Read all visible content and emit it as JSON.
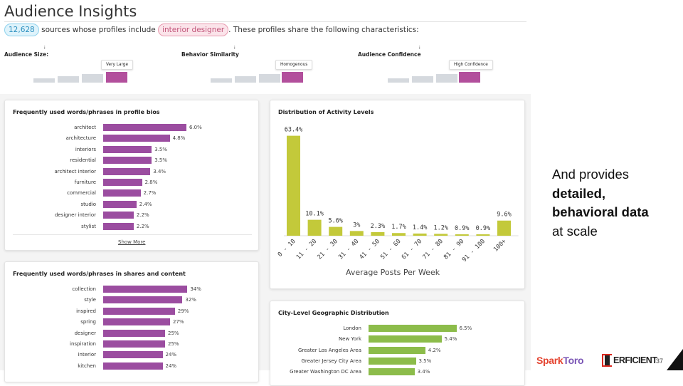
{
  "header": {
    "title": "Audience Insights",
    "count_badge": "12,628",
    "summary_pre": "sources whose profiles include",
    "keyword_badge": "interior designer",
    "summary_post": ". These profiles share the following characteristics:"
  },
  "meters": [
    {
      "label": "Audience Size:",
      "value": "Very Large",
      "level": 4,
      "info": "i"
    },
    {
      "label": "Behavior Similarity",
      "value": "Homogenous",
      "level": 4,
      "info": "i"
    },
    {
      "label": "Audience Confidence",
      "value": "High Confidence",
      "level": 4,
      "info": "i"
    }
  ],
  "bios_card": {
    "title": "Frequently used words/phrases in profile bios",
    "show_more": "Show More",
    "items": [
      {
        "label": "architect",
        "value": 6.0,
        "text": "6.0%"
      },
      {
        "label": "architecture",
        "value": 4.8,
        "text": "4.8%"
      },
      {
        "label": "interiors",
        "value": 3.5,
        "text": "3.5%"
      },
      {
        "label": "residential",
        "value": 3.5,
        "text": "3.5%"
      },
      {
        "label": "architect interior",
        "value": 3.4,
        "text": "3.4%"
      },
      {
        "label": "furniture",
        "value": 2.8,
        "text": "2.8%"
      },
      {
        "label": "commercial",
        "value": 2.7,
        "text": "2.7%"
      },
      {
        "label": "studio",
        "value": 2.4,
        "text": "2.4%"
      },
      {
        "label": "designer interior",
        "value": 2.2,
        "text": "2.2%"
      },
      {
        "label": "stylist",
        "value": 2.2,
        "text": "2.2%"
      }
    ]
  },
  "shares_card": {
    "title": "Frequently used words/phrases in shares and content",
    "items": [
      {
        "label": "collection",
        "value": 34,
        "text": "34%"
      },
      {
        "label": "style",
        "value": 32,
        "text": "32%"
      },
      {
        "label": "inspired",
        "value": 29,
        "text": "29%"
      },
      {
        "label": "spring",
        "value": 27,
        "text": "27%"
      },
      {
        "label": "designer",
        "value": 25,
        "text": "25%"
      },
      {
        "label": "inspiration",
        "value": 25,
        "text": "25%"
      },
      {
        "label": "interior",
        "value": 24,
        "text": "24%"
      },
      {
        "label": "kitchen",
        "value": 24,
        "text": "24%"
      }
    ]
  },
  "activity_card": {
    "title": "Distribution of Activity Levels"
  },
  "chart_data": {
    "type": "bar",
    "title": "Distribution of Activity Levels",
    "xlabel": "Average Posts Per Week",
    "ylabel": "",
    "categories": [
      "0 - 10",
      "11 - 20",
      "21 - 30",
      "31 - 40",
      "41 - 50",
      "51 - 60",
      "61 - 70",
      "71 - 80",
      "81 - 90",
      "91 - 100",
      "100+"
    ],
    "values": [
      63.4,
      10.1,
      5.6,
      3,
      2.3,
      1.7,
      1.4,
      1.2,
      0.9,
      0.9,
      9.6
    ],
    "value_labels": [
      "63.4%",
      "10.1%",
      "5.6%",
      "3%",
      "2.3%",
      "1.7%",
      "1.4%",
      "1.2%",
      "0.9%",
      "0.9%",
      "9.6%"
    ],
    "ylim": [
      0,
      70
    ],
    "grid": false,
    "color": "#c3c93a"
  },
  "city_card": {
    "title": "City-Level Geographic Distribution",
    "items": [
      {
        "label": "London",
        "value": 6.5,
        "text": "6.5%"
      },
      {
        "label": "New York",
        "value": 5.4,
        "text": "5.4%"
      },
      {
        "label": "Greater Los Angeles Area",
        "value": 4.2,
        "text": "4.2%"
      },
      {
        "label": "Greater Jersey City Area",
        "value": 3.5,
        "text": "3.5%"
      },
      {
        "label": "Greater Washington DC Area",
        "value": 3.4,
        "text": "3.4%"
      }
    ]
  },
  "side": {
    "line1": "And provides",
    "line2": "detailed,",
    "line3": "behavioral data",
    "line4": "at scale"
  },
  "footer": {
    "logo1_a": "Spark",
    "logo1_b": "Toro",
    "logo2": "ERFICIENT",
    "page": "37"
  },
  "colors": {
    "bar_purple": "#9b4da0",
    "bar_green": "#8cbc4a",
    "bar_olive": "#c3c93a",
    "meter_active": "#b24f9c"
  }
}
